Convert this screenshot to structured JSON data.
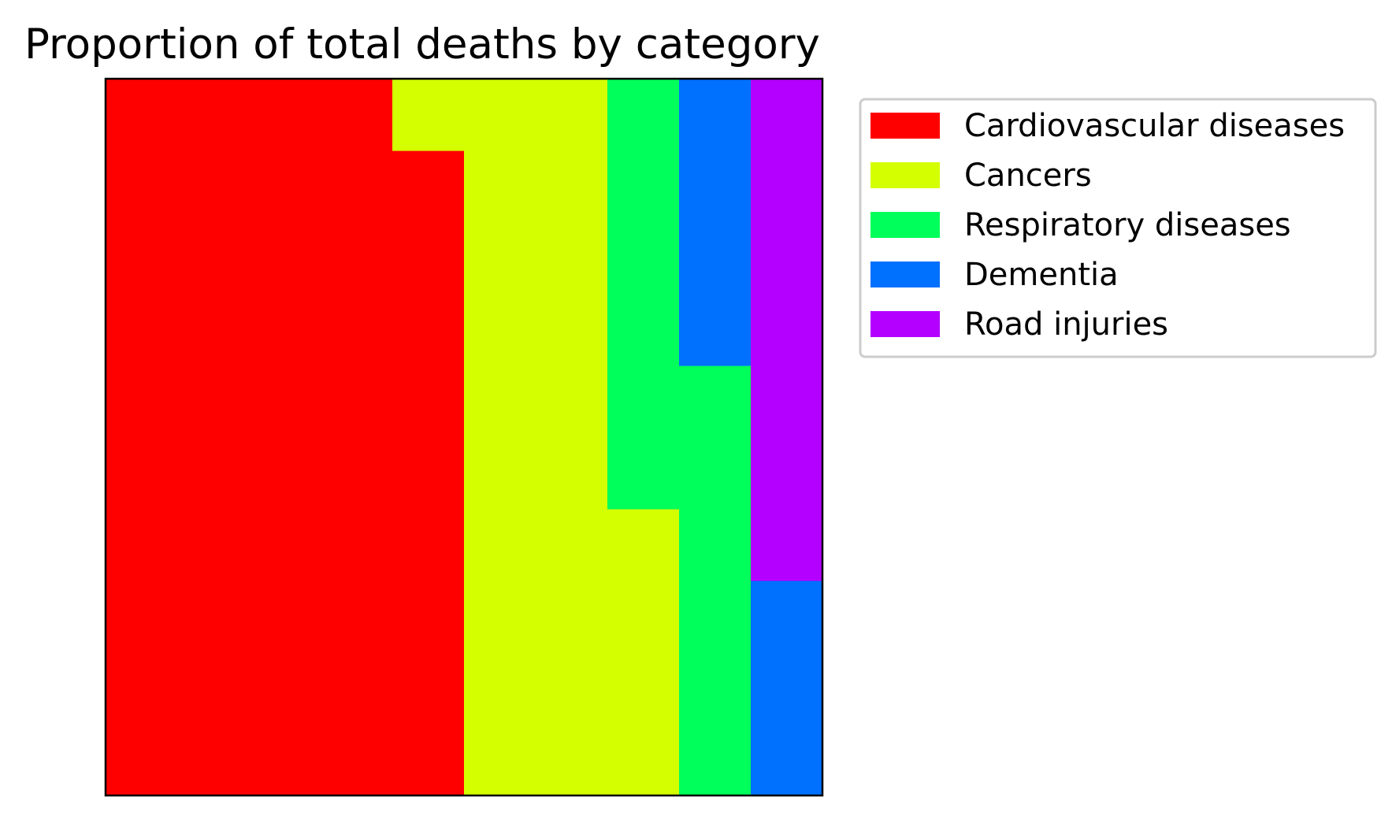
{
  "chart_data": {
    "type": "waffle",
    "title": "Proportion of total deaths by category",
    "grid": {
      "rows": 10,
      "cols": 10
    },
    "fill_order": "column-major, left to right, bottom to top",
    "total_cells": 100,
    "categories": [
      "Cardiovascular diseases",
      "Cancers",
      "Respiratory diseases",
      "Dementia",
      "Road injuries"
    ],
    "values": [
      49,
      25,
      12,
      7,
      7
    ],
    "colors": [
      "#ff0000",
      "#d4ff00",
      "#00ff5a",
      "#0070ff",
      "#b400ff"
    ],
    "legend": {
      "placement": "upper right, outside plot",
      "entries": [
        {
          "label": "Cardiovascular diseases",
          "color": "#ff0000"
        },
        {
          "label": "Cancers",
          "color": "#d4ff00"
        },
        {
          "label": "Respiratory diseases",
          "color": "#00ff5a"
        },
        {
          "label": "Dementia",
          "color": "#0070ff"
        },
        {
          "label": "Road injuries",
          "color": "#b400ff"
        }
      ]
    },
    "xlabel": "",
    "ylabel": "",
    "axes_ticks": false,
    "grid_lines": false
  }
}
